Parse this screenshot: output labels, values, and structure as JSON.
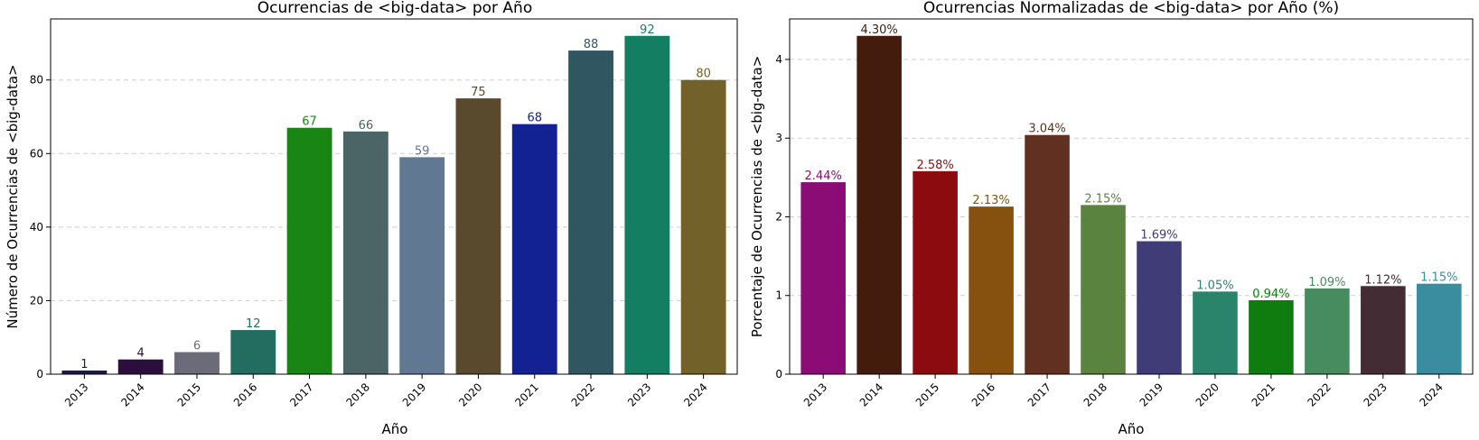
{
  "chart_data": [
    {
      "type": "bar",
      "title": "Ocurrencias de <big-data> por Año",
      "xlabel": "Año",
      "ylabel": "Número de Ocurrencias de <big-data>",
      "categories": [
        "2013",
        "2014",
        "2015",
        "2016",
        "2017",
        "2018",
        "2019",
        "2020",
        "2021",
        "2022",
        "2023",
        "2024"
      ],
      "values": [
        1,
        4,
        6,
        12,
        67,
        66,
        59,
        75,
        68,
        88,
        92,
        80
      ],
      "labels": [
        "1",
        "4",
        "6",
        "12",
        "67",
        "66",
        "59",
        "75",
        "68",
        "88",
        "92",
        "80"
      ],
      "colors": [
        "#1b1a46",
        "#2a0f3e",
        "#6b6b7a",
        "#226d5f",
        "#198514",
        "#4b6466",
        "#617892",
        "#5a4a2d",
        "#132292",
        "#305662",
        "#137e61",
        "#726128"
      ],
      "label_colors": [
        "#1b1a46",
        "#2a0f3e",
        "#6b6b7a",
        "#226d5f",
        "#198514",
        "#4b6466",
        "#617892",
        "#5a4a2d",
        "#132292",
        "#305662",
        "#137e61",
        "#726128"
      ],
      "ylim": [
        0,
        96.6
      ],
      "yticks": [
        0,
        20,
        40,
        60,
        80
      ],
      "grid": true
    },
    {
      "type": "bar",
      "title": "Ocurrencias Normalizadas de <big-data> por Año (%)",
      "xlabel": "Año",
      "ylabel": "Porcentaje de Ocurrencias de <big-data>",
      "categories": [
        "2013",
        "2014",
        "2015",
        "2016",
        "2017",
        "2018",
        "2019",
        "2020",
        "2021",
        "2022",
        "2023",
        "2024"
      ],
      "values": [
        2.44,
        4.3,
        2.58,
        2.13,
        3.04,
        2.15,
        1.69,
        1.05,
        0.94,
        1.09,
        1.12,
        1.15
      ],
      "labels": [
        "2.44%",
        "4.30%",
        "2.58%",
        "2.13%",
        "3.04%",
        "2.15%",
        "1.69%",
        "1.05%",
        "0.94%",
        "1.09%",
        "1.12%",
        "1.15%"
      ],
      "colors": [
        "#8a0c74",
        "#431c0e",
        "#8b0b0e",
        "#86510f",
        "#613020",
        "#5a833f",
        "#403c78",
        "#2a846b",
        "#0f7c10",
        "#478c5e",
        "#432c33",
        "#3a8d9e"
      ],
      "label_colors": [
        "#8a0c74",
        "#431c0e",
        "#8b0b0e",
        "#86510f",
        "#613020",
        "#5a833f",
        "#403c78",
        "#2a846b",
        "#0f7c10",
        "#478c5e",
        "#432c33",
        "#3a8d9e"
      ],
      "ylim": [
        0,
        4.515
      ],
      "yticks": [
        0,
        1,
        2,
        3,
        4
      ],
      "grid": true
    }
  ]
}
